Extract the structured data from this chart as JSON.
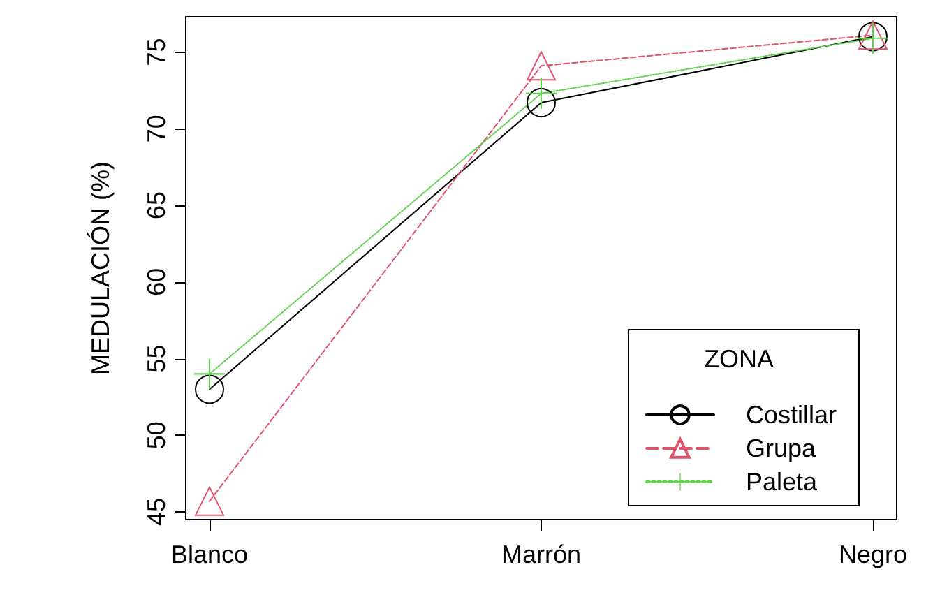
{
  "chart_data": {
    "type": "line",
    "ylabel": "MEDULACIÓN (%)",
    "legend_title": "ZONA",
    "categories": [
      "Blanco",
      "Marrón",
      "Negro"
    ],
    "series": [
      {
        "name": "Costillar",
        "color": "#000000",
        "marker": "circle",
        "line_style": "solid",
        "values": [
          53.0,
          71.7,
          76.0
        ]
      },
      {
        "name": "Grupa",
        "color": "#df536b",
        "marker": "triangle",
        "line_style": "dashed",
        "values": [
          45.7,
          74.1,
          76.1
        ]
      },
      {
        "name": "Paleta",
        "color": "#61d04f",
        "marker": "cross",
        "line_style": "dotted",
        "values": [
          54.0,
          72.3,
          75.9
        ]
      }
    ],
    "ylim": [
      44.5,
      77.3
    ],
    "yticks": [
      45,
      50,
      55,
      60,
      65,
      70,
      75
    ],
    "grid": false,
    "legend": "bottom right"
  }
}
